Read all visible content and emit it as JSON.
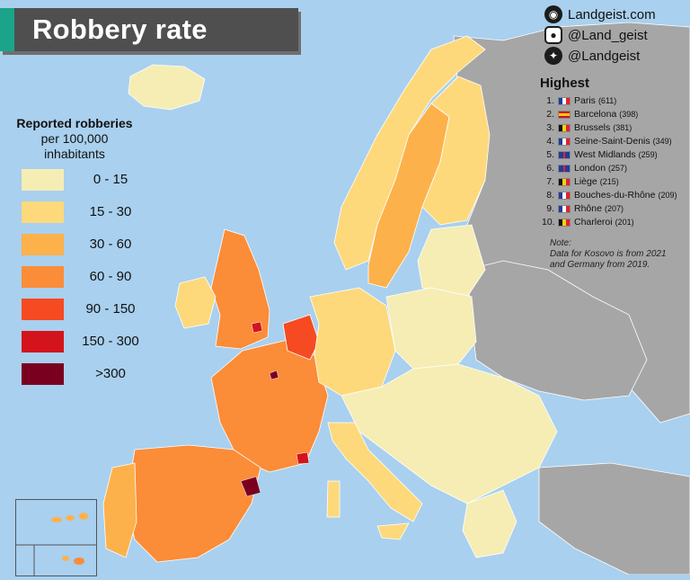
{
  "title": "Robbery rate",
  "social": {
    "website": "Landgeist.com",
    "instagram": "@Land_geist",
    "twitter": "@Landgeist"
  },
  "legend": {
    "title_line1": "Reported robberies",
    "title_line2": "per 100,000",
    "title_line3": "inhabitants",
    "classes": [
      {
        "label": "0  -  15",
        "color": "#f5edb4"
      },
      {
        "label": "15  -  30",
        "color": "#fdd97c"
      },
      {
        "label": "30  -  60",
        "color": "#fdb14b"
      },
      {
        "label": "60  -  90",
        "color": "#fb8c38"
      },
      {
        "label": "90  -  150",
        "color": "#f54a22"
      },
      {
        "label": "150 - 300",
        "color": "#d3141c"
      },
      {
        "label": ">300",
        "color": "#7a0020"
      }
    ]
  },
  "highest": {
    "heading": "Highest",
    "items": [
      {
        "rank": "1.",
        "flag": "france-flag",
        "name": "Paris",
        "value": "(611)"
      },
      {
        "rank": "2.",
        "flag": "spain-flag",
        "name": "Barcelona",
        "value": "(398)"
      },
      {
        "rank": "3.",
        "flag": "belgium-flag",
        "name": "Brussels",
        "value": "(381)"
      },
      {
        "rank": "4.",
        "flag": "france-flag",
        "name": "Seine-Saint-Denis",
        "value": "(349)"
      },
      {
        "rank": "5.",
        "flag": "uk-flag",
        "name": "West Midlands",
        "value": "(259)"
      },
      {
        "rank": "6.",
        "flag": "uk-flag",
        "name": "London",
        "value": "(257)"
      },
      {
        "rank": "7.",
        "flag": "belgium-flag",
        "name": "Liège",
        "value": "(215)"
      },
      {
        "rank": "8.",
        "flag": "france-flag",
        "name": "Bouches-du-Rhône",
        "value": "(209)"
      },
      {
        "rank": "9.",
        "flag": "france-flag",
        "name": "Rhône",
        "value": "(207)"
      },
      {
        "rank": "10.",
        "flag": "belgium-flag",
        "name": "Charleroi",
        "value": "(201)"
      }
    ]
  },
  "note": {
    "line1": "Note:",
    "line2": "Data for Kosovo is from 2021",
    "line3": "and Germany from 2019."
  },
  "colors": {
    "sea": "#a9d0ee",
    "no_data": "#a6a6a6",
    "title_bg": "#4f4f4f",
    "title_accent": "#1aa58a"
  }
}
